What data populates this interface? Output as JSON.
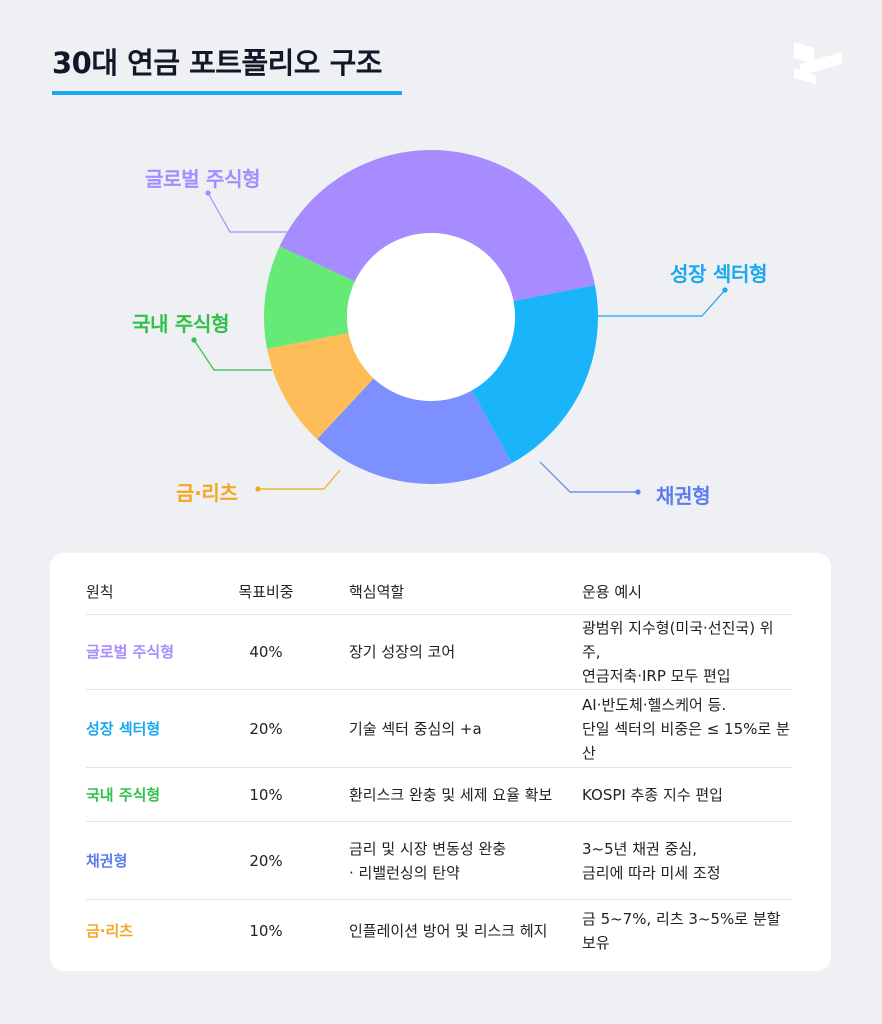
{
  "title": "30대 연금 포트폴리오 구조",
  "colors": {
    "title_underline": "#1aa9f0",
    "global_equity": "#a68cff",
    "growth_sector": "#1ab4fa",
    "bond": "#7c90ff",
    "gold_reits": "#ffbd59",
    "domestic_equity": "#66ea76"
  },
  "icons": {
    "logo": "brand-logo-icon"
  },
  "chart_data": {
    "type": "pie",
    "donut": true,
    "slices": [
      {
        "label": "글로벌 주식형",
        "value": 40,
        "color": "#a68cff",
        "label_color": "#a68cff"
      },
      {
        "label": "성장 섹터형",
        "value": 20,
        "color": "#1ab4fa",
        "label_color": "#1aa9f0"
      },
      {
        "label": "채권형",
        "value": 20,
        "color": "#7c90ff",
        "label_color": "#5d7cf2"
      },
      {
        "label": "금·리츠",
        "value": 10,
        "color": "#ffbd59",
        "label_color": "#f5a623"
      },
      {
        "label": "국내 주식형",
        "value": 10,
        "color": "#66ea76",
        "label_color": "#2fc14a"
      }
    ]
  },
  "table": {
    "headers": [
      "원칙",
      "목표비중",
      "핵심역할",
      "운용 예시"
    ],
    "rows": [
      {
        "name": "글로벌 주식형",
        "name_color": "#a68cff",
        "weight": "40%",
        "role": "장기 성장의 코어",
        "example": "광범위 지수형(미국·선진국) 위주,\n연금저축·IRP 모두 편입"
      },
      {
        "name": "성장 섹터형",
        "name_color": "#1aa9f0",
        "weight": "20%",
        "role": "기술 섹터 중심의 +a",
        "example": "AI·반도체·헬스케어 등.\n단일 섹터의 비중은 ≤ 15%로 분산"
      },
      {
        "name": "국내 주식형",
        "name_color": "#2fc14a",
        "weight": "10%",
        "role": "환리스크 완충 및 세제 요율 확보",
        "example": "KOSPI 추종 지수 편입"
      },
      {
        "name": "채권형",
        "name_color": "#5d7cf2",
        "weight": "20%",
        "role": "금리 및 시장 변동성 완충\n· 리밸런싱의 탄약",
        "example": "3~5년 채권 중심,\n금리에 따라 미세 조정"
      },
      {
        "name": "금·리츠",
        "name_color": "#f5a623",
        "weight": "10%",
        "role": "인플레이션 방어 및 리스크 헤지",
        "example": "금 5~7%, 리츠 3~5%로 분할 보유"
      }
    ]
  }
}
